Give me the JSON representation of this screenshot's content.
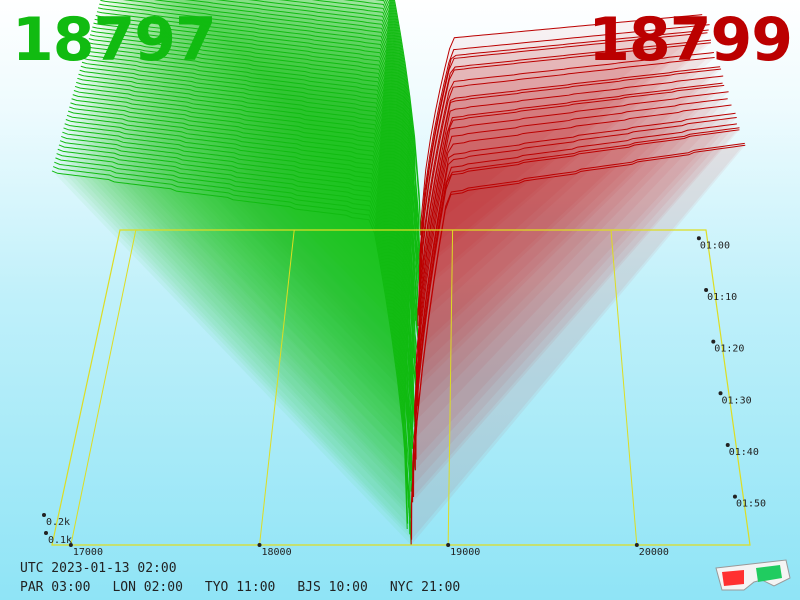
{
  "header": {
    "bid": "18797",
    "ask": "18799"
  },
  "colors": {
    "bid": "#11bb11",
    "ask": "#bb0000",
    "grid": "#dddd22",
    "latest": "#9933ff"
  },
  "footer": {
    "utc": "UTC 2023-01-13 02:00",
    "zones": [
      "PAR 03:00",
      "LON 02:00",
      "TYO 11:00",
      "BJS 10:00",
      "NYC 21:00"
    ]
  },
  "icons": {
    "corner": "3d-glasses-icon"
  },
  "chart_data": {
    "type": "area",
    "x_ticks": [
      17000,
      18000,
      19000,
      20000
    ],
    "x_tick_labels": [
      "17000",
      "18000",
      "19000",
      "20000"
    ],
    "x_range": [
      16900,
      20600
    ],
    "depth_ticks": [
      "0.1k",
      "0.2k"
    ],
    "time_ticks": [
      "01:00",
      "01:10",
      "01:20",
      "01:30",
      "01:40",
      "01:50"
    ],
    "series": [
      {
        "side": "bid",
        "price_start": 16900,
        "price_end": 18797,
        "depth_top_start": 1.6,
        "depth_top_end": 1.3
      },
      {
        "side": "ask",
        "price_start": 18799,
        "price_end": 20600,
        "depth_top_start": 1.2,
        "depth_top_end": 1.4
      }
    ],
    "mid_price": 18798,
    "snapshots": 60,
    "grid": true
  }
}
